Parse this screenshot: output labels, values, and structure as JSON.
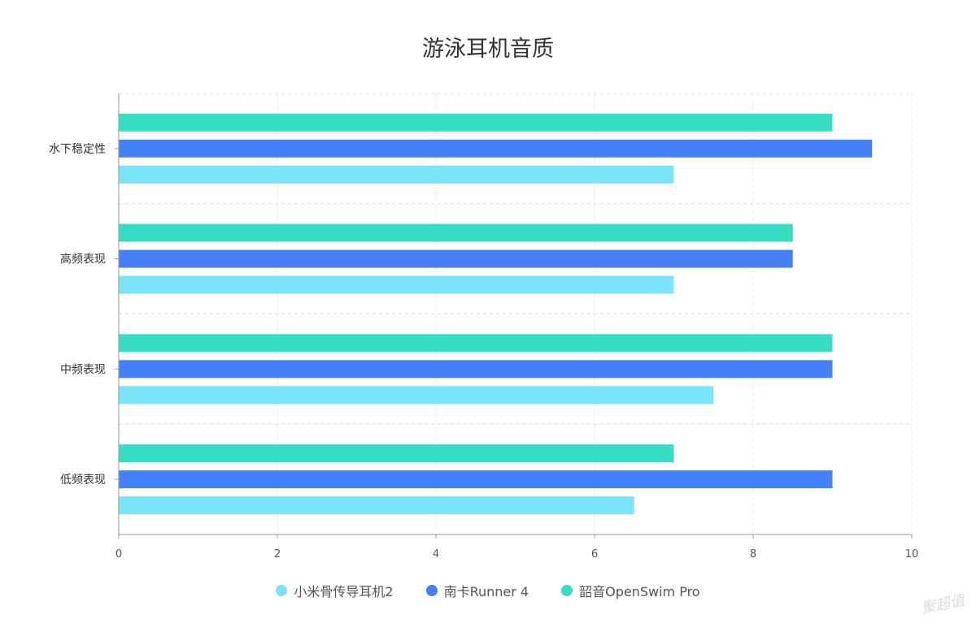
{
  "chart_data": {
    "type": "bar",
    "orientation": "horizontal",
    "title": "游泳耳机音质",
    "categories": [
      "水下稳定性",
      "高频表现",
      "中频表现",
      "低频表现"
    ],
    "series": [
      {
        "name": "韶音OpenSwim Pro",
        "color": "#36dfc4",
        "values": [
          9,
          8.5,
          9,
          7
        ]
      },
      {
        "name": "南卡Runner 4",
        "color": "#4480f6",
        "values": [
          9.5,
          8.5,
          9,
          9
        ]
      },
      {
        "name": "小米骨传导耳机2",
        "color": "#7ae5f9",
        "values": [
          7,
          7,
          7.5,
          6.5
        ]
      }
    ],
    "legend_order": [
      "小米骨传导耳机2",
      "南卡Runner 4",
      "韶音OpenSwim Pro"
    ],
    "xlim": [
      0,
      10
    ],
    "xticks": [
      "0",
      "2",
      "4",
      "6",
      "8",
      "10"
    ],
    "grid": true,
    "legend_position": "bottom"
  },
  "watermark": "聚超值"
}
